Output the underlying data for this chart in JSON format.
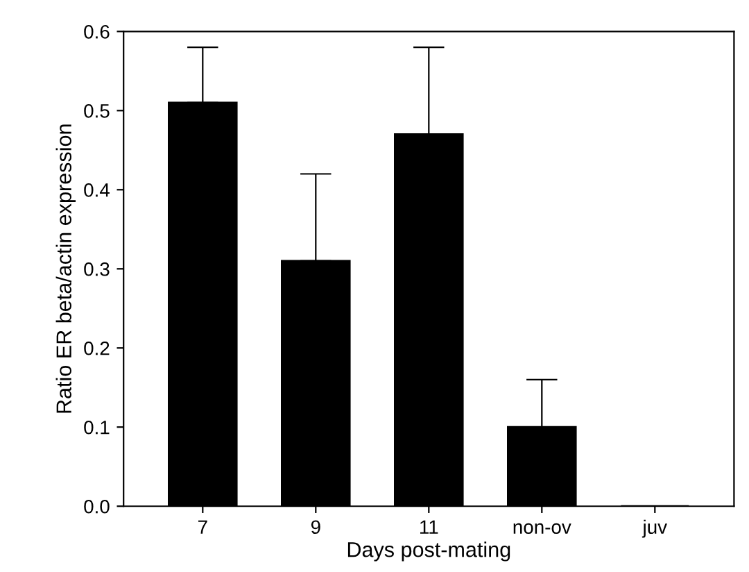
{
  "chart_data": {
    "type": "bar",
    "xlabel": "Days post-mating",
    "ylabel": "Ratio ER beta/actin expression",
    "categories": [
      "7",
      "9",
      "11",
      "non-ov",
      "juv"
    ],
    "values": [
      0.51,
      0.31,
      0.47,
      0.1,
      0
    ],
    "errors": [
      [
        0.51,
        0.58
      ],
      [
        0.31,
        0.42
      ],
      [
        0.47,
        0.58
      ],
      [
        0.1,
        0.16
      ],
      null
    ],
    "color": "#000000",
    "ylim": [
      0,
      0.6
    ],
    "yticks": [
      "0.0",
      0.1,
      0.2,
      0.3,
      0.4,
      0.5,
      0.6
    ],
    "grid": false
  }
}
